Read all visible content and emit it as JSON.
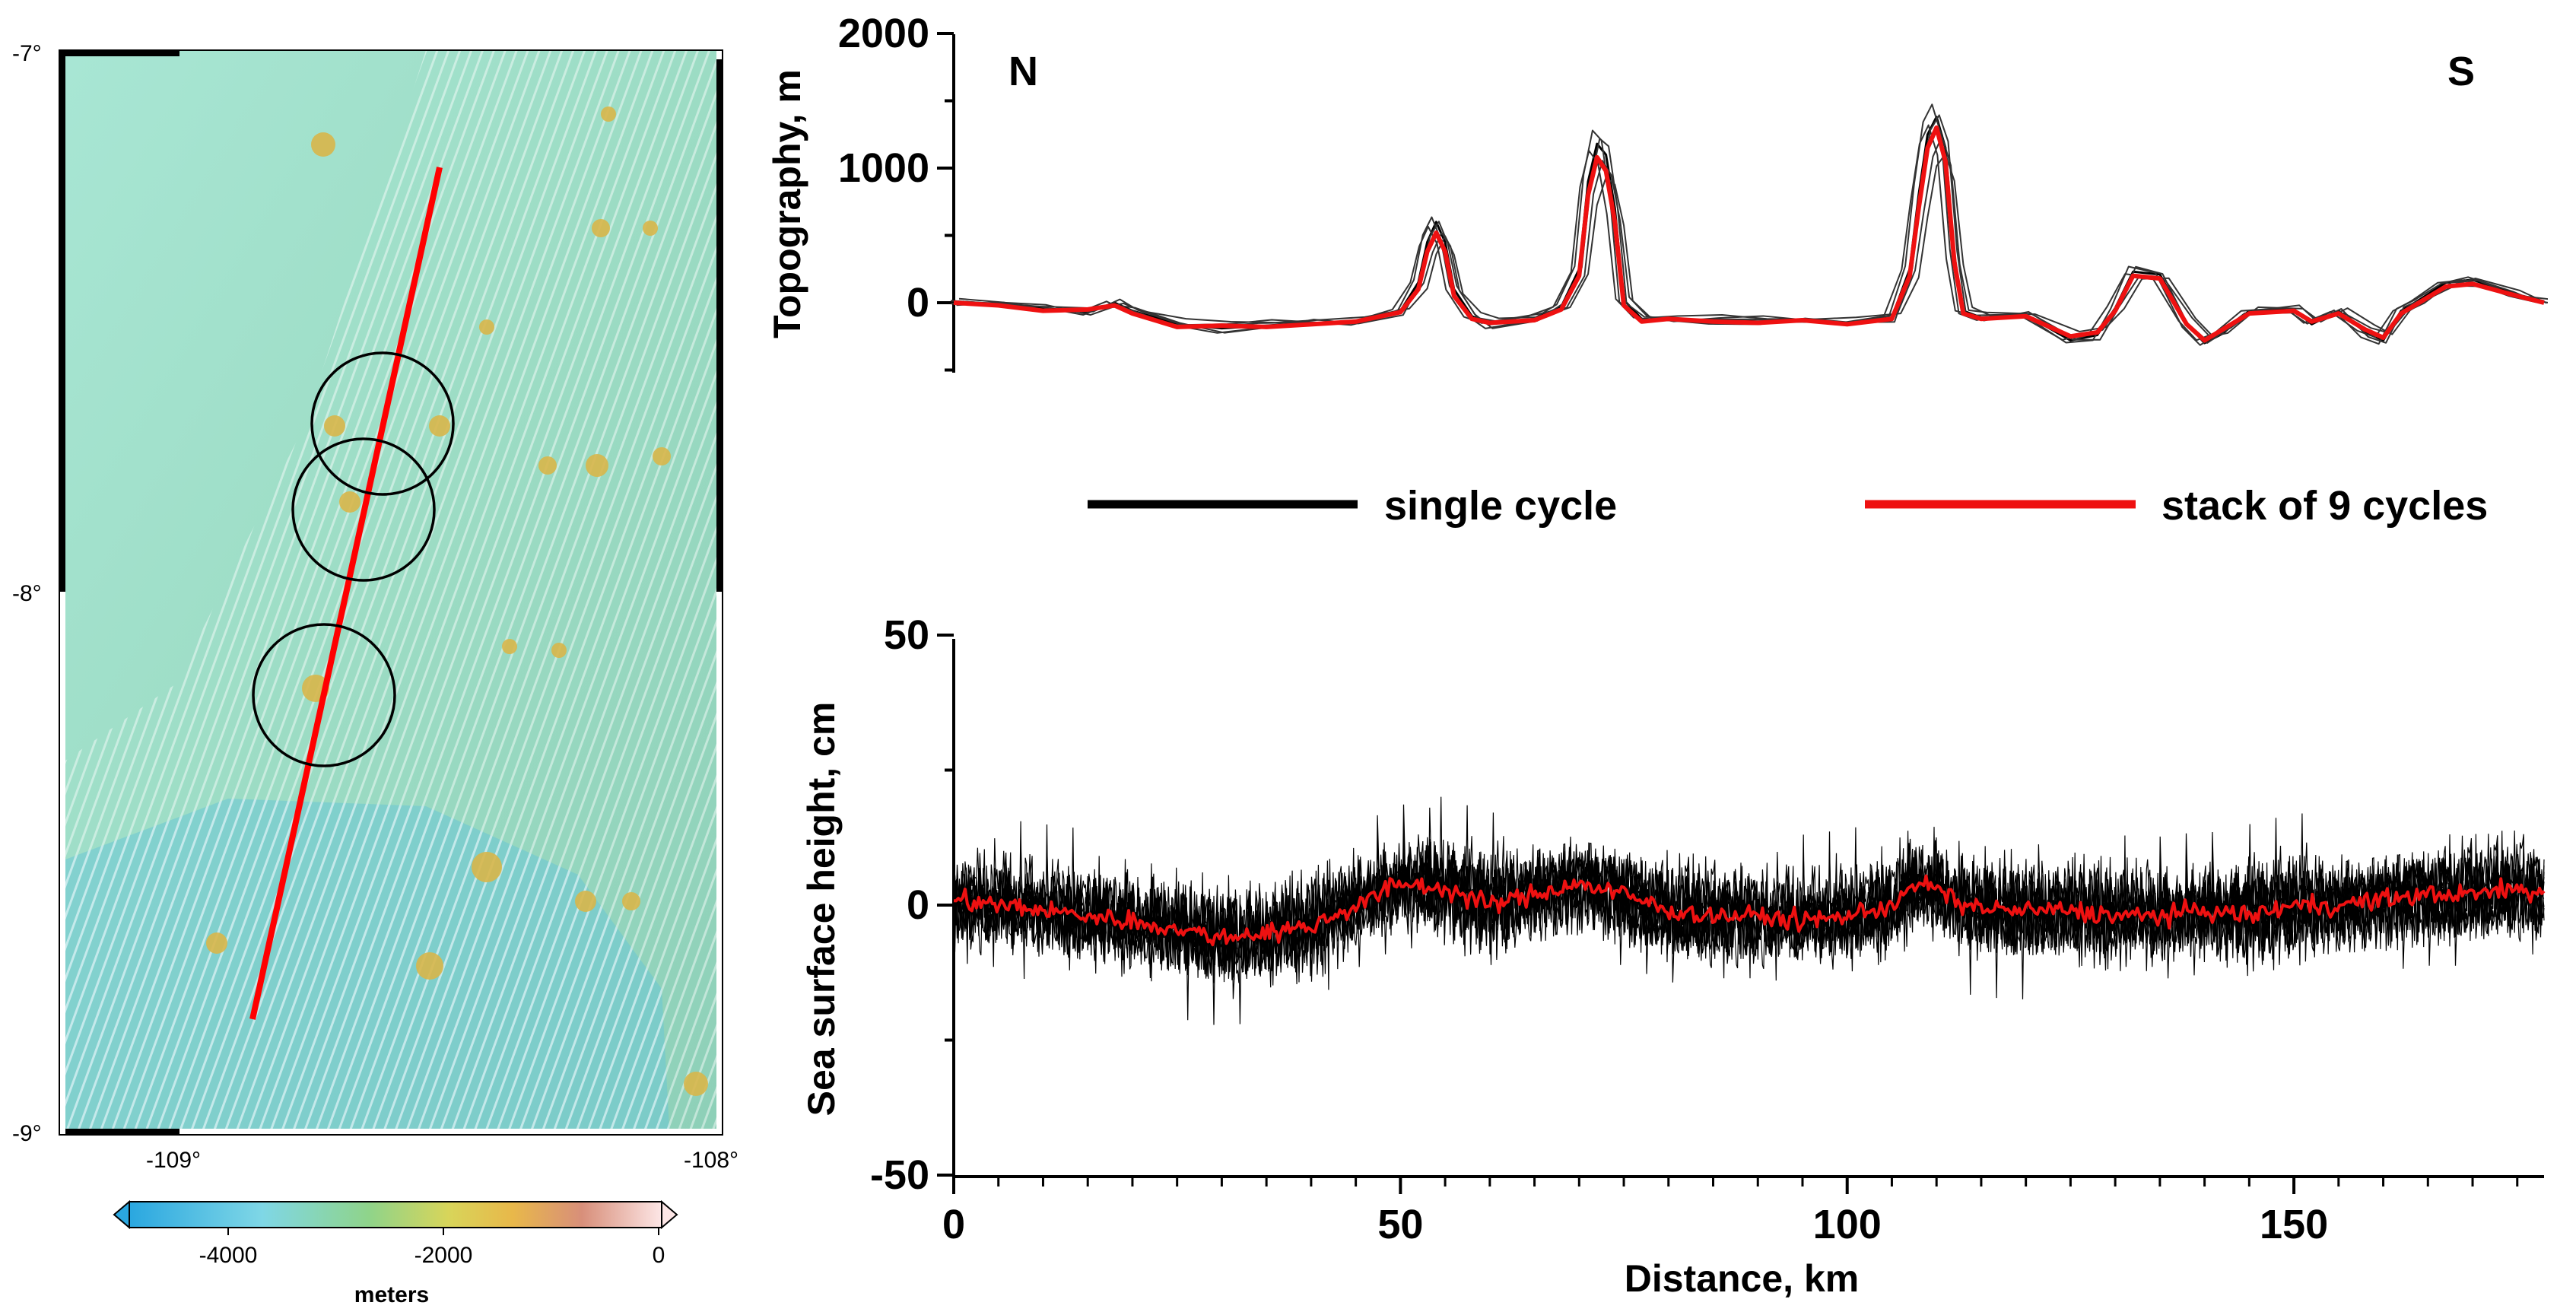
{
  "colors": {
    "single": "#000000",
    "stack": "#ee1111",
    "track": "#ff0000"
  },
  "map": {
    "lat_labels": [
      "-7°",
      "-8°",
      "-9°"
    ],
    "lon_labels": [
      "-109°",
      "-108°"
    ],
    "colorbar": {
      "ticks": [
        "-4000",
        "-2000",
        "0"
      ],
      "label": "meters"
    }
  },
  "legend": {
    "single_label": "single cycle",
    "stack_label": "stack of 9 cycles"
  },
  "chart_data": [
    {
      "type": "line",
      "id": "topography",
      "ylabel": "Topography, m",
      "xlabel": "",
      "xlim": [
        0,
        178
      ],
      "ylim": [
        -500,
        2000
      ],
      "yticks": [
        "2000",
        "1000",
        "0"
      ],
      "annotations": {
        "north": "N",
        "south": "S"
      },
      "series": [
        {
          "name": "stack of 9 cycles",
          "x": [
            0,
            5,
            10,
            15,
            18,
            20,
            25,
            30,
            35,
            40,
            45,
            50,
            52,
            53,
            54,
            55,
            56,
            58,
            60,
            65,
            68,
            70,
            71,
            72,
            73,
            74,
            75,
            77,
            80,
            85,
            90,
            95,
            100,
            105,
            107,
            108,
            109,
            110,
            111,
            112,
            113,
            115,
            120,
            125,
            128,
            130,
            132,
            135,
            138,
            140,
            142,
            145,
            150,
            152,
            155,
            158,
            160,
            162,
            164,
            167,
            170,
            175,
            178
          ],
          "y": [
            0,
            -20,
            -60,
            -50,
            -20,
            -80,
            -180,
            -170,
            -180,
            -160,
            -140,
            -70,
            100,
            380,
            520,
            380,
            50,
            -120,
            -150,
            -130,
            -50,
            200,
            800,
            1080,
            980,
            600,
            -20,
            -140,
            -120,
            -140,
            -150,
            -130,
            -160,
            -120,
            200,
            700,
            1150,
            1300,
            1050,
            300,
            -80,
            -120,
            -100,
            -250,
            -220,
            -60,
            200,
            180,
            -160,
            -280,
            -200,
            -80,
            -60,
            -140,
            -80,
            -200,
            -260,
            -80,
            0,
            120,
            140,
            50,
            0
          ]
        },
        {
          "name": "single cycle",
          "x": [
            0,
            5,
            10,
            15,
            18,
            20,
            25,
            30,
            35,
            40,
            45,
            50,
            52,
            53,
            54,
            55,
            56,
            58,
            60,
            65,
            68,
            70,
            71,
            72,
            73,
            74,
            75,
            77,
            80,
            85,
            90,
            95,
            100,
            105,
            107,
            108,
            109,
            110,
            111,
            112,
            113,
            115,
            120,
            125,
            128,
            130,
            132,
            135,
            138,
            140,
            142,
            145,
            150,
            152,
            155,
            158,
            160,
            162,
            164,
            167,
            170,
            175,
            178
          ],
          "y": [
            10,
            -10,
            -40,
            -70,
            0,
            -60,
            -160,
            -190,
            -170,
            -150,
            -150,
            -60,
            150,
            450,
            600,
            450,
            100,
            -100,
            -160,
            -120,
            -30,
            250,
            900,
            1180,
            1100,
            700,
            20,
            -120,
            -130,
            -130,
            -140,
            -140,
            -150,
            -110,
            250,
            800,
            1250,
            1380,
            1150,
            350,
            -60,
            -110,
            -90,
            -280,
            -240,
            -40,
            230,
            210,
            -150,
            -300,
            -230,
            -60,
            -50,
            -160,
            -60,
            -220,
            -280,
            -60,
            20,
            150,
            170,
            60,
            10
          ]
        }
      ]
    },
    {
      "type": "line",
      "id": "sea_surface_height",
      "ylabel": "Sea surface height, cm",
      "xlabel": "Distance, km",
      "xlim": [
        0,
        178
      ],
      "ylim": [
        -50,
        50
      ],
      "xticks": [
        "0",
        "50",
        "100",
        "150"
      ],
      "yticks": [
        "50",
        "0",
        "-50"
      ],
      "series": [
        {
          "name": "stack of 9 cycles",
          "x": [
            0,
            10,
            20,
            30,
            35,
            40,
            45,
            50,
            55,
            60,
            65,
            70,
            75,
            80,
            85,
            90,
            95,
            100,
            105,
            108,
            110,
            113,
            118,
            125,
            130,
            135,
            140,
            145,
            150,
            155,
            160,
            165,
            170,
            175,
            178
          ],
          "y": [
            1,
            -1,
            -3,
            -6,
            -5,
            -4,
            0,
            4,
            3,
            0,
            2,
            4,
            2,
            -1,
            -2,
            -2,
            -3,
            -2,
            0,
            4,
            3,
            0,
            -1,
            -1,
            -2,
            -2,
            -1,
            -2,
            0,
            0,
            1,
            2,
            2,
            3,
            2
          ]
        },
        {
          "name": "single cycle",
          "noise_amplitude": 9,
          "min": -27,
          "max": 24
        }
      ]
    }
  ]
}
